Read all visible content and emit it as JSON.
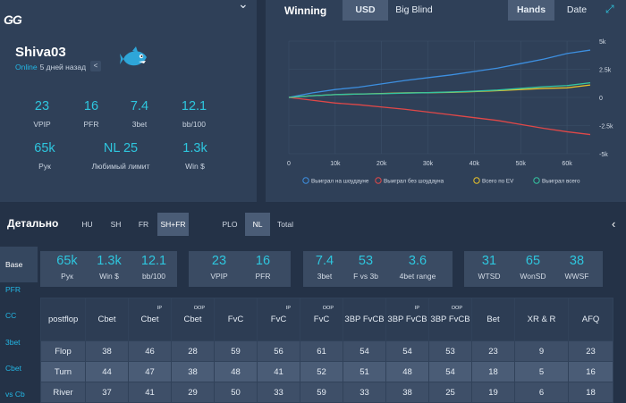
{
  "profile": {
    "logo": "GG",
    "username": "Shiva03",
    "online_status": "Online",
    "last_seen": "5 дней назад",
    "share_icon": "share-icon",
    "avatar_icon": "fish-icon",
    "stats": [
      {
        "value": "23",
        "label": "VPIP"
      },
      {
        "value": "16",
        "label": "PFR"
      },
      {
        "value": "7.4",
        "label": "3bet"
      },
      {
        "value": "12.1",
        "label": "bb/100"
      },
      {
        "value": "65k",
        "label": "Рук"
      },
      {
        "value": "NL 25",
        "label": "Любимый лимит"
      },
      {
        "value": "1.3k",
        "label": "Win $"
      }
    ]
  },
  "chart_panel": {
    "title": "Winning",
    "unit_tabs": [
      "USD",
      "Big Blind"
    ],
    "unit_active": "USD",
    "axis_tabs": [
      "Hands",
      "Date"
    ],
    "axis_active": "Hands"
  },
  "chart_data": {
    "type": "line",
    "x_ticks": [
      "0",
      "10k",
      "20k",
      "30k",
      "40k",
      "50k",
      "60k"
    ],
    "y_ticks": [
      "5k",
      "2.5k",
      "0",
      "-2.5k",
      "-5k"
    ],
    "xlim": [
      0,
      65000
    ],
    "ylim": [
      -5000,
      5000
    ],
    "grid": true,
    "legend_position": "bottom",
    "x": [
      0,
      5000,
      10000,
      15000,
      20000,
      25000,
      30000,
      35000,
      40000,
      45000,
      50000,
      55000,
      60000,
      65000
    ],
    "series": [
      {
        "name": "Выиграл на шоудауне",
        "color": "#3d8fe0",
        "values": [
          0,
          400,
          700,
          900,
          1200,
          1500,
          1750,
          2000,
          2300,
          2600,
          3000,
          3400,
          3900,
          4200
        ]
      },
      {
        "name": "Выиграл без шоудауна",
        "color": "#e04848",
        "values": [
          0,
          -250,
          -500,
          -650,
          -850,
          -1050,
          -1300,
          -1550,
          -1800,
          -2050,
          -2400,
          -2750,
          -3050,
          -3300
        ]
      },
      {
        "name": "Всего по EV",
        "color": "#e8c22a",
        "values": [
          0,
          150,
          250,
          300,
          350,
          400,
          420,
          450,
          520,
          600,
          700,
          800,
          850,
          1100
        ]
      },
      {
        "name": "Выиграл всего",
        "color": "#35c4a0",
        "values": [
          0,
          150,
          250,
          300,
          330,
          380,
          420,
          480,
          550,
          650,
          800,
          950,
          1050,
          1300
        ]
      }
    ]
  },
  "detail": {
    "title": "Детально",
    "format_tabs": [
      "HU",
      "SH",
      "FR",
      "SH+FR"
    ],
    "format_active": "SH+FR",
    "game_tabs": [
      "PLO",
      "NL",
      "Total"
    ],
    "game_active": "NL",
    "collapse_icon": "chevron-left-icon",
    "side_nav": [
      "Base",
      "PFR",
      "CC",
      "3bet",
      "Cbet",
      "vs Cb"
    ],
    "side_active": "Base",
    "box1": [
      {
        "value": "65k",
        "label": "Рук"
      },
      {
        "value": "1.3k",
        "label": "Win $"
      },
      {
        "value": "12.1",
        "label": "bb/100"
      }
    ],
    "box2": [
      {
        "value": "23",
        "label": "VPIP"
      },
      {
        "value": "16",
        "label": "PFR"
      }
    ],
    "box3": [
      {
        "value": "7.4",
        "label": "3bet"
      },
      {
        "value": "53",
        "label": "F vs 3b"
      },
      {
        "value": "3.6",
        "label": "4bet range"
      }
    ],
    "box4": [
      {
        "value": "31",
        "label": "WTSD"
      },
      {
        "value": "65",
        "label": "WonSD"
      },
      {
        "value": "38",
        "label": "WWSF"
      }
    ]
  },
  "table": {
    "row_header": "postflop",
    "columns": [
      {
        "label": "Cbet",
        "sup": ""
      },
      {
        "label": "Cbet",
        "sup": "IP"
      },
      {
        "label": "Cbet",
        "sup": "OOP"
      },
      {
        "label": "FvC",
        "sup": ""
      },
      {
        "label": "FvC",
        "sup": "IP"
      },
      {
        "label": "FvC",
        "sup": "OOP"
      },
      {
        "label": "3BP FvCB",
        "sup": ""
      },
      {
        "label": "3BP FvCB",
        "sup": "IP"
      },
      {
        "label": "3BP FvCB",
        "sup": "OOP"
      },
      {
        "label": "Bet",
        "sup": ""
      },
      {
        "label": "XR & R",
        "sup": ""
      },
      {
        "label": "AFQ",
        "sup": ""
      }
    ],
    "rows": [
      {
        "name": "Flop",
        "cells": [
          "38",
          "46",
          "28",
          "59",
          "56",
          "61",
          "54",
          "54",
          "53",
          "23",
          "9",
          "23"
        ]
      },
      {
        "name": "Turn",
        "cells": [
          "44",
          "47",
          "38",
          "48",
          "41",
          "52",
          "51",
          "48",
          "54",
          "18",
          "5",
          "16"
        ]
      },
      {
        "name": "River",
        "cells": [
          "37",
          "41",
          "29",
          "50",
          "33",
          "59",
          "33",
          "38",
          "25",
          "19",
          "6",
          "18"
        ]
      }
    ]
  }
}
